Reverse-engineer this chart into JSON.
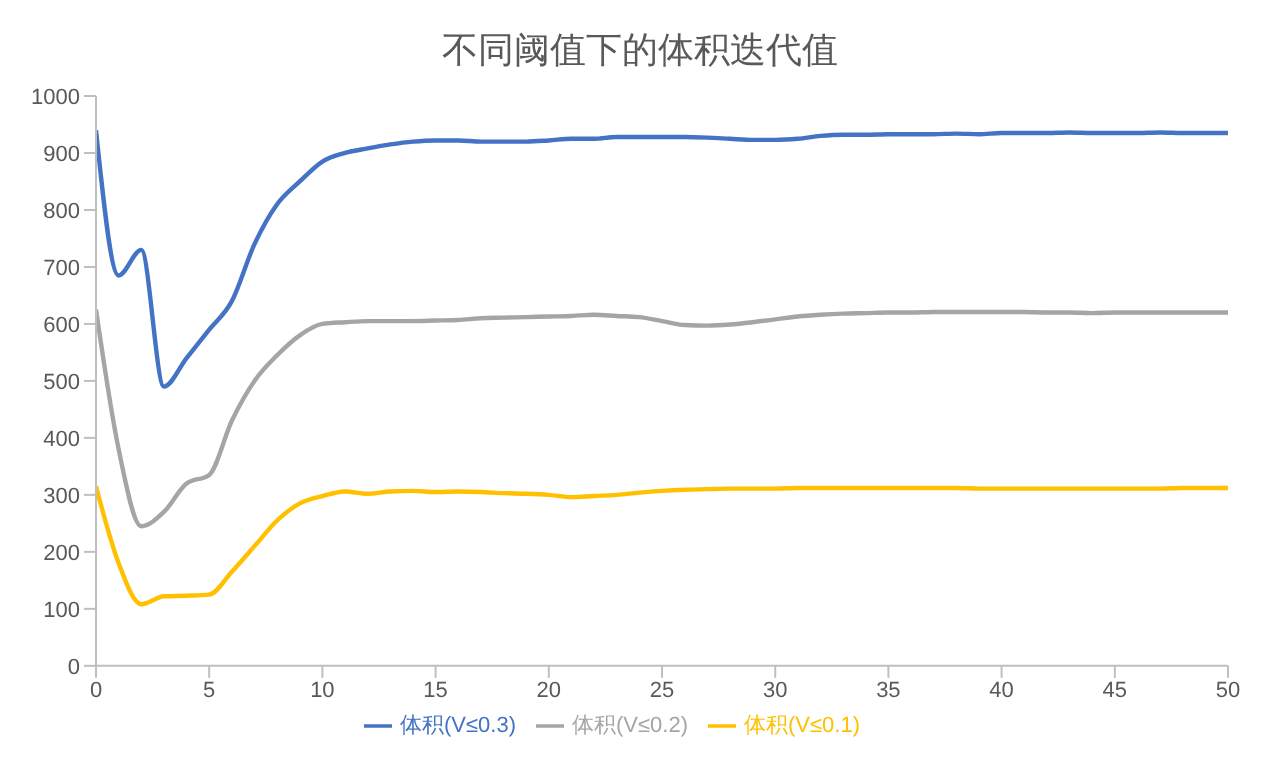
{
  "chart_data": {
    "type": "line",
    "title": "不同阈值下的体积迭代值",
    "x": [
      0,
      1,
      2,
      3,
      4,
      5,
      6,
      7,
      8,
      9,
      10,
      11,
      12,
      13,
      14,
      15,
      16,
      17,
      18,
      19,
      20,
      21,
      22,
      23,
      24,
      25,
      26,
      27,
      28,
      29,
      30,
      31,
      32,
      33,
      34,
      35,
      36,
      37,
      38,
      39,
      40,
      41,
      42,
      43,
      44,
      45,
      46,
      47,
      48,
      49,
      50
    ],
    "series": [
      {
        "name": "体积(V≤0.3)",
        "color": "#4472c4",
        "values": [
          940,
          685,
          730,
          490,
          540,
          590,
          640,
          740,
          810,
          850,
          885,
          900,
          908,
          915,
          920,
          922,
          922,
          920,
          920,
          920,
          922,
          925,
          925,
          928,
          928,
          928,
          928,
          927,
          925,
          923,
          923,
          925,
          930,
          932,
          932,
          933,
          933,
          933,
          934,
          933,
          935,
          935,
          935,
          936,
          935,
          935,
          935,
          936,
          935,
          935,
          935
        ]
      },
      {
        "name": "体积(V≤0.2)",
        "color": "#a5a5a5",
        "values": [
          625,
          380,
          245,
          270,
          320,
          335,
          430,
          500,
          545,
          580,
          600,
          603,
          605,
          605,
          605,
          606,
          607,
          610,
          611,
          612,
          613,
          614,
          616,
          614,
          612,
          605,
          598,
          597,
          599,
          603,
          608,
          613,
          616,
          618,
          619,
          620,
          620,
          621,
          621,
          621,
          621,
          621,
          620,
          620,
          619,
          620,
          620,
          620,
          620,
          620,
          620
        ]
      },
      {
        "name": "体积(V≤0.1)",
        "color": "#ffc000",
        "values": [
          315,
          180,
          108,
          122,
          123,
          125,
          165,
          210,
          255,
          285,
          298,
          306,
          302,
          306,
          307,
          305,
          306,
          305,
          303,
          302,
          300,
          296,
          298,
          300,
          304,
          307,
          309,
          310,
          311,
          311,
          311,
          312,
          312,
          312,
          312,
          312,
          312,
          312,
          312,
          311,
          311,
          311,
          311,
          311,
          311,
          311,
          311,
          311,
          312,
          312,
          312
        ]
      }
    ],
    "xlim": [
      0,
      50
    ],
    "xticks": [
      0,
      5,
      10,
      15,
      20,
      25,
      30,
      35,
      40,
      45,
      50
    ],
    "ylim": [
      0,
      1000
    ],
    "yticks": [
      0,
      100,
      200,
      300,
      400,
      500,
      600,
      700,
      800,
      900,
      1000
    ],
    "grid": false,
    "legend": "bottom",
    "marker": "none",
    "line_style": "solid"
  }
}
